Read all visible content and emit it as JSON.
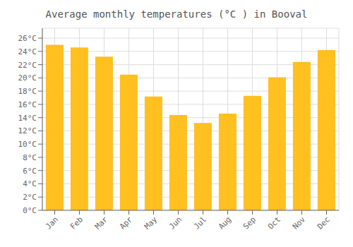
{
  "chart_data": {
    "type": "bar",
    "title": "Average monthly temperatures (°C ) in Booval",
    "categories": [
      "Jan",
      "Feb",
      "Mar",
      "Apr",
      "May",
      "Jun",
      "Jul",
      "Aug",
      "Sep",
      "Oct",
      "Nov",
      "Dec"
    ],
    "values": [
      25.0,
      24.6,
      23.2,
      20.5,
      17.2,
      14.4,
      13.2,
      14.6,
      17.3,
      20.1,
      22.4,
      24.2
    ],
    "color": "#FFC020",
    "ylim": [
      0,
      27.5
    ],
    "yticks": [
      {
        "value": 0,
        "label": "0°C"
      },
      {
        "value": 2,
        "label": "2°C"
      },
      {
        "value": 4,
        "label": "4°C"
      },
      {
        "value": 6,
        "label": "6°C"
      },
      {
        "value": 8,
        "label": "8°C"
      },
      {
        "value": 10,
        "label": "10°C"
      },
      {
        "value": 12,
        "label": "12°C"
      },
      {
        "value": 14,
        "label": "14°C"
      },
      {
        "value": 16,
        "label": "16°C"
      },
      {
        "value": 18,
        "label": "18°C"
      },
      {
        "value": 20,
        "label": "20°C"
      },
      {
        "value": 22,
        "label": "22°C"
      },
      {
        "value": 24,
        "label": "24°C"
      },
      {
        "value": 26,
        "label": "26°C"
      }
    ],
    "grid": true
  }
}
